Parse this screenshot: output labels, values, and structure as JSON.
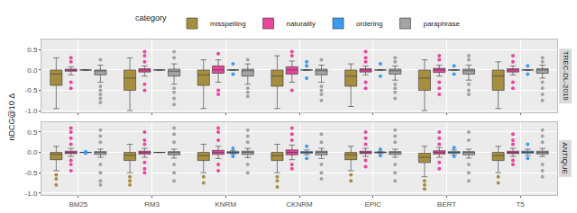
{
  "chart_data": {
    "type": "box",
    "y_label": "nDCG@10 Δ",
    "legend_title": "category",
    "legend": "top",
    "grid": true,
    "categories": [
      "BM25",
      "RM3",
      "KNRM",
      "CKNRM",
      "EPIC",
      "BERT",
      "T5"
    ],
    "ylim": [
      -1.05,
      0.75
    ],
    "yticks": [
      {
        "value": -1,
        "label": "-1.0"
      },
      {
        "value": -0.5,
        "label": "-0.5"
      },
      {
        "value": 0,
        "label": "0.0"
      },
      {
        "value": 0.5,
        "label": "0.5"
      }
    ],
    "panels": [
      {
        "label": "TREC-DL-2019",
        "series": [
          {
            "name": "misspelling",
            "color": "#A68E3F",
            "q1": [
              -0.38,
              -0.5,
              -0.38,
              -0.4,
              -0.4,
              -0.5,
              -0.5
            ],
            "median": [
              -0.1,
              -0.2,
              -0.12,
              -0.15,
              -0.15,
              -0.2,
              -0.15
            ],
            "q3": [
              0,
              0,
              0,
              0,
              0,
              0,
              0
            ],
            "lowerfence": [
              -0.95,
              -1,
              -0.95,
              -0.95,
              -0.9,
              -1,
              -0.95
            ],
            "upperfence": [
              0.3,
              0.3,
              0.25,
              0.35,
              0.15,
              0.25,
              0.2
            ],
            "outliers": [
              [],
              [],
              [],
              [],
              [],
              [],
              []
            ]
          },
          {
            "name": "naturality",
            "color": "#E8479B",
            "q1": [
              -0.03,
              -0.05,
              -0.08,
              -0.1,
              -0.05,
              -0.06,
              -0.05
            ],
            "median": [
              0,
              0,
              0,
              0,
              0,
              0,
              0
            ],
            "q3": [
              0.02,
              0.03,
              0.1,
              0.08,
              0.03,
              0.04,
              0.03
            ],
            "lowerfence": [
              -0.12,
              -0.15,
              -0.3,
              -0.3,
              -0.12,
              -0.15,
              -0.12
            ],
            "upperfence": [
              0.08,
              0.1,
              0.25,
              0.22,
              0.1,
              0.12,
              0.1
            ],
            "outliers": [
              [
                -0.3,
                -0.45,
                0.2,
                0.3
              ],
              [
                -0.35,
                -0.5,
                0.2,
                0.35,
                0.45
              ],
              [
                -0.5,
                -0.6,
                0.4
              ],
              [
                -0.5,
                0.35,
                0.45
              ],
              [
                -0.3,
                -0.45,
                0.2,
                0.3,
                0.45
              ],
              [
                -0.3,
                -0.45,
                -0.6,
                0.25,
                0.35
              ],
              [
                -0.3,
                -0.45,
                0.2,
                0.35
              ]
            ]
          },
          {
            "name": "ordering",
            "color": "#3A9BF3",
            "q1": [
              0,
              0,
              0,
              0,
              0,
              0,
              0
            ],
            "median": [
              0,
              0,
              0,
              0,
              0,
              0,
              0
            ],
            "q3": [
              0,
              0,
              0,
              0,
              0,
              0,
              0
            ],
            "lowerfence": [
              0,
              0,
              0,
              0,
              0,
              0,
              0
            ],
            "upperfence": [
              0,
              0,
              0,
              0,
              0,
              0,
              0
            ],
            "outliers": [
              [],
              [],
              [
                0.15,
                -0.1
              ],
              [
                0.2,
                0.1,
                -0.2
              ],
              [
                -0.15,
                0.15
              ],
              [
                -0.1,
                0.1
              ],
              [
                0.1,
                -0.1
              ]
            ]
          },
          {
            "name": "paraphrase",
            "color": "#A3A3A3",
            "q1": [
              -0.12,
              -0.15,
              -0.15,
              -0.12,
              -0.1,
              -0.1,
              -0.08
            ],
            "median": [
              -0.02,
              -0.03,
              -0.02,
              -0.02,
              -0.02,
              -0.02,
              0
            ],
            "q3": [
              0,
              0.02,
              0.02,
              0.02,
              0.02,
              0.02,
              0.03
            ],
            "lowerfence": [
              -0.3,
              -0.35,
              -0.35,
              -0.3,
              -0.25,
              -0.25,
              -0.2
            ],
            "upperfence": [
              0.12,
              0.15,
              0.15,
              0.12,
              0.1,
              0.12,
              0.12
            ],
            "outliers": [
              [
                -0.4,
                -0.5,
                -0.6,
                -0.7,
                -0.8,
                0.25
              ],
              [
                -0.45,
                -0.55,
                -0.7,
                -0.85,
                0.3,
                0.45
              ],
              [
                -0.45,
                -0.55,
                -0.65,
                0.25
              ],
              [
                -0.4,
                -0.5,
                -0.6,
                -0.75,
                0.25
              ],
              [
                -0.35,
                -0.45,
                -0.55,
                -0.7,
                0.2,
                0.3
              ],
              [
                -0.35,
                -0.5,
                -0.6,
                0.25,
                0.35
              ],
              [
                -0.3,
                -0.45,
                -0.6,
                -0.75,
                0.2,
                0.3
              ]
            ]
          }
        ]
      },
      {
        "label": "ANTIQUE",
        "series": [
          {
            "name": "misspelling",
            "color": "#A68E3F",
            "q1": [
              -0.18,
              -0.2,
              -0.2,
              -0.2,
              -0.18,
              -0.25,
              -0.2
            ],
            "median": [
              -0.05,
              -0.07,
              -0.08,
              -0.08,
              -0.06,
              -0.12,
              -0.08
            ],
            "q3": [
              0,
              0,
              0,
              0,
              0,
              -0.02,
              0
            ],
            "lowerfence": [
              -0.45,
              -0.5,
              -0.5,
              -0.5,
              -0.45,
              -0.6,
              -0.5
            ],
            "upperfence": [
              0.15,
              0.2,
              0.2,
              0.2,
              0.15,
              0.15,
              0.15
            ],
            "outliers": [
              [
                -0.55,
                -0.65,
                -0.8
              ],
              [
                -0.6,
                -0.7,
                -0.8
              ],
              [
                -0.6,
                -0.75
              ],
              [
                -0.6,
                -0.7,
                -0.85
              ],
              [
                -0.55,
                -0.7
              ],
              [
                -0.7,
                -0.8,
                -0.9
              ],
              [
                -0.6,
                -0.75
              ]
            ]
          },
          {
            "name": "naturality",
            "color": "#E8479B",
            "q1": [
              -0.03,
              -0.04,
              -0.05,
              -0.06,
              -0.03,
              -0.04,
              -0.03
            ],
            "median": [
              0,
              0,
              0,
              0,
              0,
              0,
              0
            ],
            "q3": [
              0.03,
              0.03,
              0.05,
              0.06,
              0.03,
              0.04,
              0.03
            ],
            "lowerfence": [
              -0.1,
              -0.12,
              -0.15,
              -0.18,
              -0.1,
              -0.12,
              -0.1
            ],
            "upperfence": [
              0.1,
              0.1,
              0.15,
              0.18,
              0.1,
              0.12,
              0.1
            ],
            "outliers": [
              [
                -0.2,
                -0.3,
                -0.45,
                0.2,
                0.35,
                0.5,
                0.6
              ],
              [
                -0.25,
                -0.4,
                -0.5,
                0.2,
                0.3,
                0.5
              ],
              [
                -0.3,
                -0.45,
                0.3,
                0.5,
                0.6
              ],
              [
                -0.3,
                -0.4,
                0.3,
                0.45,
                0.6
              ],
              [
                -0.2,
                -0.35,
                0.2,
                0.35,
                0.5
              ],
              [
                -0.25,
                -0.4,
                0.2,
                0.35,
                0.5
              ],
              [
                -0.2,
                -0.3,
                0.2,
                0.3,
                0.45
              ]
            ]
          },
          {
            "name": "ordering",
            "color": "#3A9BF3",
            "q1": [
              0,
              0,
              -0.02,
              -0.02,
              -0.01,
              -0.02,
              -0.02
            ],
            "median": [
              0,
              0,
              0,
              0,
              0,
              0,
              0
            ],
            "q3": [
              0,
              0,
              0.02,
              0.02,
              0.01,
              0.02,
              0.03
            ],
            "lowerfence": [
              0,
              0,
              -0.05,
              -0.06,
              -0.03,
              -0.06,
              -0.08
            ],
            "upperfence": [
              0,
              0,
              0.05,
              0.06,
              0.03,
              0.06,
              0.08
            ],
            "outliers": [
              [
                0.02,
                -0.02
              ],
              [],
              [
                0.1,
                -0.1
              ],
              [
                0.15,
                -0.15
              ],
              [
                0.08,
                -0.08
              ],
              [
                0.12,
                -0.1
              ],
              [
                0.2,
                -0.15
              ]
            ]
          },
          {
            "name": "paraphrase",
            "color": "#A3A3A3",
            "q1": [
              -0.05,
              -0.06,
              -0.05,
              -0.06,
              -0.05,
              -0.06,
              -0.04
            ],
            "median": [
              0,
              0,
              0,
              0,
              0,
              0,
              0
            ],
            "q3": [
              0.02,
              0.02,
              0.03,
              0.03,
              0.02,
              0.02,
              0.03
            ],
            "lowerfence": [
              -0.12,
              -0.14,
              -0.13,
              -0.15,
              -0.12,
              -0.14,
              -0.1
            ],
            "upperfence": [
              0.08,
              0.08,
              0.1,
              0.1,
              0.08,
              0.08,
              0.1
            ],
            "outliers": [
              [
                -0.3,
                -0.5,
                -0.7,
                -0.8,
                0.25,
                0.4,
                0.55
              ],
              [
                -0.3,
                -0.5,
                -0.7,
                0.25,
                0.45,
                0.6
              ],
              [
                -0.3,
                -0.5,
                0.25,
                0.4,
                0.55
              ],
              [
                -0.3,
                -0.5,
                -0.65,
                0.25,
                0.45
              ],
              [
                -0.3,
                -0.5,
                -0.7,
                0.25,
                0.4,
                0.55
              ],
              [
                -0.3,
                -0.5,
                -0.7,
                0.3,
                0.5
              ],
              [
                -0.3,
                -0.45,
                -0.6,
                0.25,
                0.4,
                0.55
              ]
            ]
          }
        ]
      }
    ]
  }
}
